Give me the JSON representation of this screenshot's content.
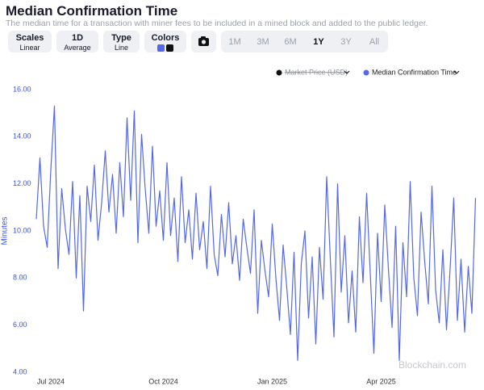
{
  "ui": {
    "title": "Median Confirmation Time",
    "subtitle": "The median time for a transaction with miner fees to be included in a mined block and added to the public ledger.",
    "controls": [
      {
        "label": "Scales",
        "value": "Linear"
      },
      {
        "label": "1D",
        "value": "Average"
      },
      {
        "label": "Type",
        "value": "Line"
      },
      {
        "label": "Colors"
      }
    ],
    "ranges": [
      "1M",
      "3M",
      "6M",
      "1Y",
      "3Y",
      "All"
    ],
    "active_range": "1Y",
    "legend_hidden": "Market Price (USD)",
    "watermark": "Blockchain.com"
  },
  "chart_data": {
    "type": "line",
    "ylabel": "Minutes",
    "ylim": [
      4,
      16
    ],
    "yticks": [
      {
        "value": 4,
        "label": "4.00"
      },
      {
        "value": 6,
        "label": "6.00"
      },
      {
        "value": 8,
        "label": "8.00"
      },
      {
        "value": 10,
        "label": "10.00"
      },
      {
        "value": 12,
        "label": "12.00"
      },
      {
        "value": 14,
        "label": "14.00"
      },
      {
        "value": 16,
        "label": "16.00"
      }
    ],
    "categories": [
      null,
      null,
      null,
      null,
      "Jul 2024",
      null,
      null,
      null,
      null,
      null,
      null,
      null,
      null,
      null,
      null,
      null,
      null,
      null,
      null,
      null,
      null,
      null,
      null,
      null,
      null,
      null,
      null,
      null,
      null,
      null,
      null,
      null,
      null,
      null,
      null,
      "Oct 2024",
      null,
      null,
      null,
      null,
      null,
      null,
      null,
      null,
      null,
      null,
      null,
      null,
      null,
      null,
      null,
      null,
      null,
      null,
      null,
      null,
      null,
      null,
      null,
      null,
      null,
      null,
      null,
      null,
      null,
      "Jan 2025",
      null,
      null,
      null,
      null,
      null,
      null,
      null,
      null,
      null,
      null,
      null,
      null,
      null,
      null,
      null,
      null,
      null,
      null,
      null,
      null,
      null,
      null,
      null,
      null,
      null,
      null,
      null,
      null,
      null,
      "Apr 2025",
      null,
      null,
      null,
      null,
      null,
      null,
      null,
      null,
      null,
      null,
      null,
      null,
      null,
      null,
      null,
      null,
      null,
      null,
      null,
      null,
      null,
      null,
      null,
      null,
      null,
      null
    ],
    "series": [
      {
        "name": "Median Confirmation Time",
        "color": "#5468e8",
        "values": [
          10.5,
          13.1,
          10.2,
          9.3,
          12.6,
          15.3,
          8.4,
          11.8,
          10.1,
          9.0,
          12.1,
          8.0,
          11.5,
          6.6,
          11.9,
          10.4,
          12.8,
          9.6,
          11.2,
          13.4,
          10.8,
          12.4,
          9.9,
          12.9,
          10.6,
          14.8,
          11.3,
          15.1,
          9.5,
          14.1,
          11.8,
          9.9,
          13.6,
          10.2,
          11.7,
          9.6,
          12.9,
          9.8,
          11.4,
          8.7,
          12.3,
          9.5,
          10.9,
          8.8,
          11.6,
          9.2,
          10.4,
          8.4,
          11.9,
          9.0,
          8.1,
          10.7,
          8.9,
          11.2,
          8.6,
          9.8,
          7.9,
          10.5,
          9.3,
          8.2,
          10.9,
          6.5,
          9.6,
          8.3,
          7.2,
          10.3,
          8.0,
          6.2,
          9.4,
          7.6,
          5.6,
          9.1,
          4.5,
          8.6,
          10.0,
          6.3,
          8.9,
          5.2,
          9.3,
          7.1,
          12.3,
          8.8,
          5.5,
          12.0,
          7.4,
          9.8,
          6.1,
          8.3,
          5.7,
          10.6,
          7.8,
          11.6,
          8.2,
          4.8,
          9.9,
          7.0,
          11.1,
          8.4,
          5.9,
          10.2,
          4.5,
          9.5,
          7.2,
          12.1,
          8.0,
          6.4,
          10.8,
          8.7,
          6.9,
          11.9,
          7.5,
          6.1,
          9.2,
          5.8,
          8.4,
          11.4,
          6.2,
          8.8,
          5.7,
          8.5,
          6.5,
          11.4
        ]
      }
    ]
  }
}
